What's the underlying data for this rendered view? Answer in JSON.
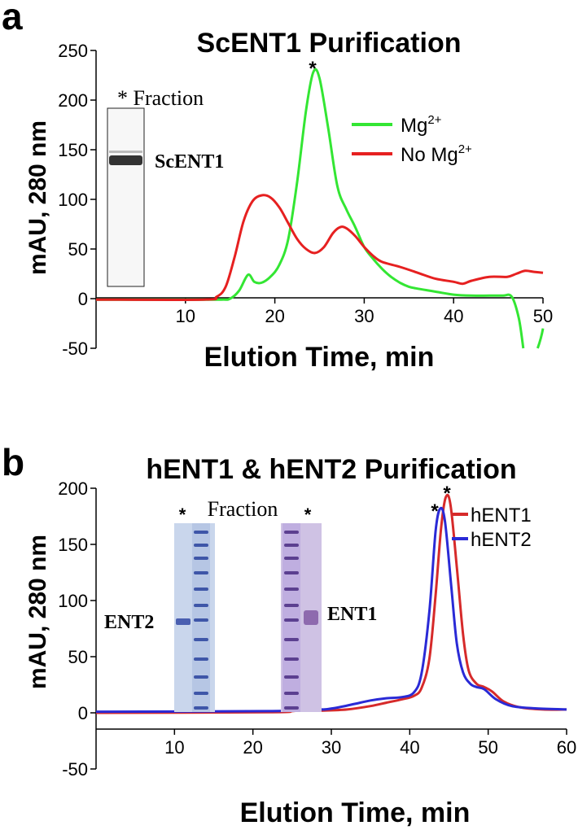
{
  "panels": [
    {
      "letter": "a",
      "title": "ScENT1 Purification",
      "xlabel": "Elution Time, min",
      "ylabel": "mAU, 280 nm",
      "xlim": [
        0,
        50
      ],
      "ylim": [
        -50,
        250
      ],
      "xticks": [
        "10",
        "20",
        "30",
        "40",
        "50"
      ],
      "yticks": [
        "250",
        "200",
        "150",
        "100",
        "50",
        "0",
        "-50"
      ],
      "legend": [
        "Mg",
        "No Mg"
      ],
      "legend_sup": "2+",
      "peak_marker": "*",
      "inset": {
        "caption": "* Fraction",
        "band_label": "ScENT1"
      }
    },
    {
      "letter": "b",
      "title": "hENT1 & hENT2 Purification",
      "xlabel": "Elution Time, min",
      "ylabel": "mAU, 280 nm",
      "xlim": [
        0,
        60
      ],
      "ylim": [
        -50,
        200
      ],
      "xticks": [
        "10",
        "20",
        "30",
        "40",
        "50",
        "60"
      ],
      "yticks": [
        "200",
        "150",
        "100",
        "50",
        "0",
        "-50"
      ],
      "legend": [
        "hENT1",
        "hENT2"
      ],
      "peak_markers": [
        "*",
        "*"
      ],
      "inset": {
        "caption": "Fraction",
        "lane_markers": [
          "*",
          "*"
        ],
        "left_gel_label": "ENT2",
        "right_gel_label": "ENT1"
      }
    }
  ],
  "chart_data": [
    {
      "type": "line",
      "title": "ScENT1 Purification",
      "xlabel": "Elution Time, min",
      "ylabel": "mAU, 280 nm",
      "xlim": [
        0,
        50
      ],
      "ylim": [
        -50,
        250
      ],
      "grid": false,
      "legend_position": "top-right",
      "series": [
        {
          "name": "Mg2+",
          "color": "#33e633",
          "points": [
            [
              0,
              -1
            ],
            [
              10,
              -1
            ],
            [
              14,
              -1
            ],
            [
              15,
              0
            ],
            [
              16,
              8
            ],
            [
              17,
              24
            ],
            [
              17.7,
              17
            ],
            [
              18.5,
              16
            ],
            [
              19.5,
              22
            ],
            [
              20.5,
              34
            ],
            [
              21.5,
              60
            ],
            [
              22.5,
              118
            ],
            [
              23.5,
              190
            ],
            [
              24.3,
              228
            ],
            [
              25,
              222
            ],
            [
              26,
              170
            ],
            [
              27,
              113
            ],
            [
              28,
              90
            ],
            [
              29,
              72
            ],
            [
              30,
              52
            ],
            [
              31,
              40
            ],
            [
              32,
              30
            ],
            [
              33,
              22
            ],
            [
              34,
              16
            ],
            [
              35,
              12
            ],
            [
              36,
              10
            ],
            [
              38,
              7
            ],
            [
              40,
              4
            ],
            [
              42,
              3
            ],
            [
              44,
              3
            ],
            [
              45.5,
              3
            ],
            [
              46.5,
              2
            ],
            [
              47.3,
              -20
            ],
            [
              47.8,
              -50
            ]
          ]
        },
        {
          "name": "No Mg2+",
          "color": "#e62020",
          "points": [
            [
              0,
              -1
            ],
            [
              12,
              -1
            ],
            [
              13.5,
              2
            ],
            [
              14.5,
              12
            ],
            [
              15.5,
              42
            ],
            [
              16.5,
              78
            ],
            [
              17.5,
              98
            ],
            [
              18.5,
              104
            ],
            [
              19.5,
              102
            ],
            [
              20.5,
              92
            ],
            [
              21.5,
              76
            ],
            [
              22.5,
              60
            ],
            [
              23.5,
              50
            ],
            [
              24.5,
              46
            ],
            [
              25.5,
              52
            ],
            [
              26.5,
              66
            ],
            [
              27.3,
              72
            ],
            [
              28,
              71
            ],
            [
              29,
              63
            ],
            [
              30,
              52
            ],
            [
              31,
              43
            ],
            [
              32,
              37
            ],
            [
              34,
              32
            ],
            [
              36,
              26
            ],
            [
              38,
              20
            ],
            [
              40,
              17
            ],
            [
              41,
              15
            ],
            [
              42,
              18
            ],
            [
              44,
              22
            ],
            [
              46,
              22
            ],
            [
              47,
              25
            ],
            [
              48,
              28
            ],
            [
              49,
              27
            ],
            [
              50,
              26
            ]
          ]
        }
      ]
    },
    {
      "type": "line",
      "title": "hENT1 & hENT2 Purification",
      "xlabel": "Elution Time, min",
      "ylabel": "mAU, 280 nm",
      "xlim": [
        0,
        60
      ],
      "ylim": [
        -50,
        200
      ],
      "grid": false,
      "legend_position": "top-right",
      "series": [
        {
          "name": "hENT1",
          "color": "#d62a2a",
          "points": [
            [
              0,
              0
            ],
            [
              22,
              0.5
            ],
            [
              25,
              1.5
            ],
            [
              26.5,
              3
            ],
            [
              27.5,
              2
            ],
            [
              29,
              2
            ],
            [
              32,
              3
            ],
            [
              35,
              6
            ],
            [
              37,
              9
            ],
            [
              39,
              12
            ],
            [
              40.5,
              15
            ],
            [
              41.5,
              22
            ],
            [
              42.5,
              48
            ],
            [
              43.3,
              105
            ],
            [
              44,
              165
            ],
            [
              44.6,
              192
            ],
            [
              45.2,
              185
            ],
            [
              46,
              130
            ],
            [
              46.8,
              70
            ],
            [
              47.5,
              38
            ],
            [
              48.5,
              26
            ],
            [
              49.5,
              23
            ],
            [
              50.5,
              19
            ],
            [
              52,
              10
            ],
            [
              54,
              5
            ],
            [
              57,
              3
            ],
            [
              60,
              3
            ]
          ]
        },
        {
          "name": "hENT2",
          "color": "#2a2ad6",
          "points": [
            [
              0,
              1
            ],
            [
              22,
              1.5
            ],
            [
              25,
              3
            ],
            [
              26.3,
              6
            ],
            [
              27.5,
              4
            ],
            [
              29,
              3
            ],
            [
              31,
              5
            ],
            [
              33,
              8
            ],
            [
              35,
              11
            ],
            [
              37,
              13
            ],
            [
              39,
              14
            ],
            [
              40.5,
              18
            ],
            [
              41.5,
              35
            ],
            [
              42.5,
              90
            ],
            [
              43.3,
              162
            ],
            [
              43.9,
              182
            ],
            [
              44.5,
              170
            ],
            [
              45.3,
              112
            ],
            [
              46,
              62
            ],
            [
              46.8,
              36
            ],
            [
              47.7,
              26
            ],
            [
              48.5,
              23
            ],
            [
              49.5,
              21
            ],
            [
              51,
              12
            ],
            [
              53,
              6
            ],
            [
              56,
              4
            ],
            [
              60,
              3
            ]
          ]
        }
      ]
    }
  ]
}
